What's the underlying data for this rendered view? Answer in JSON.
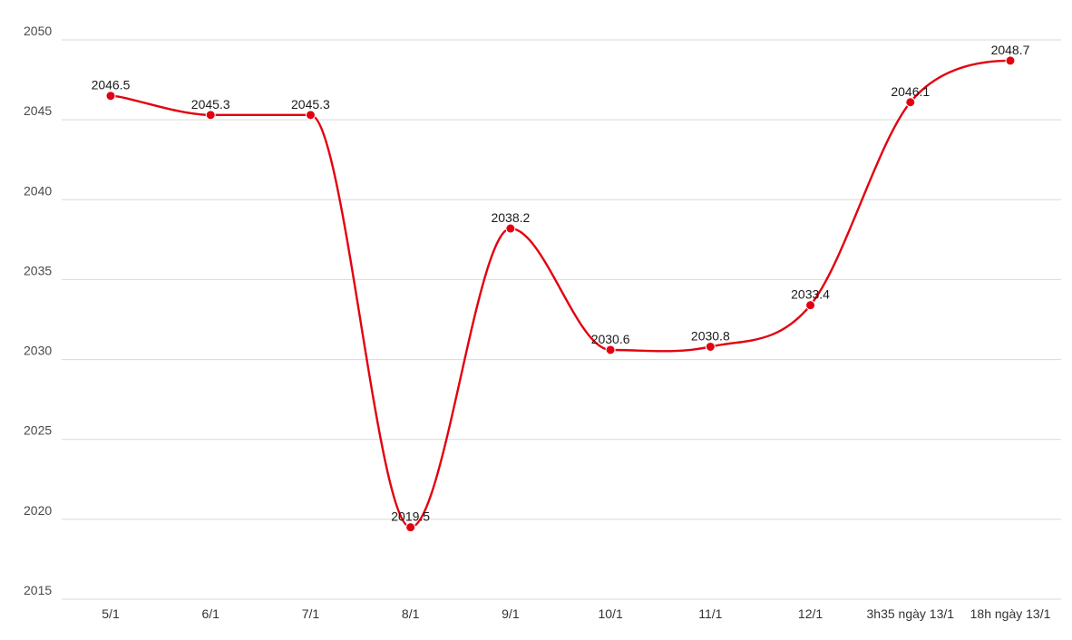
{
  "chart_data": {
    "type": "line",
    "categories": [
      "5/1",
      "6/1",
      "7/1",
      "8/1",
      "9/1",
      "10/1",
      "11/1",
      "12/1",
      "3h35 ngày 13/1",
      "18h ngày 13/1"
    ],
    "series": [
      {
        "values": [
          2046.5,
          2045.3,
          2045.3,
          2019.5,
          2038.2,
          2030.6,
          2030.8,
          2033.4,
          2046.1,
          2048.7
        ]
      }
    ],
    "data_labels": [
      "2046.5",
      "2045.3",
      "2045.3",
      "2019.5",
      "2038.2",
      "2030.6",
      "2030.8",
      "2033.4",
      "2046.1",
      "2048.7"
    ],
    "y_ticks": [
      "2015",
      "2020",
      "2025",
      "2030",
      "2035",
      "2040",
      "2045",
      "2050"
    ],
    "ylim": [
      2015,
      2050
    ],
    "grid": true,
    "colors": {
      "line": "#e3000f",
      "grid": "#d9d9d9"
    }
  }
}
